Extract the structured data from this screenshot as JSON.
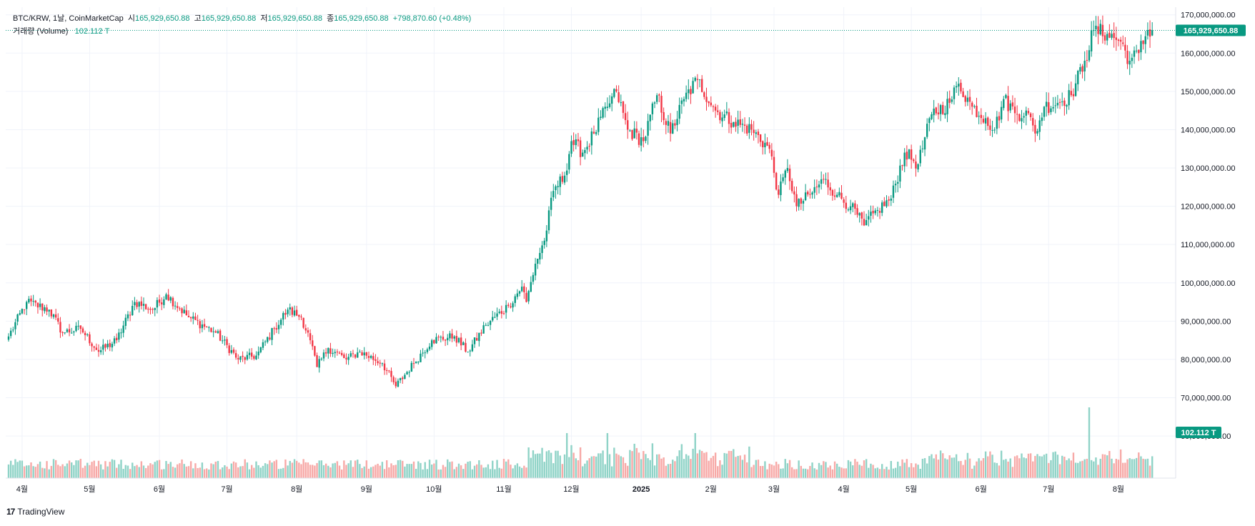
{
  "legend": {
    "symbol": "BTC/KRW, 1날, CoinMarketCap",
    "open_label": "시",
    "open_value": "165,929,650.88",
    "high_label": "고",
    "high_value": "165,929,650.88",
    "low_label": "저",
    "low_value": "165,929,650.88",
    "close_label": "종",
    "close_value": "165,929,650.88",
    "change": "+798,870.60 (+0.48%)",
    "volume_label": "거래량 (Volume)",
    "volume_value": "102.112 T"
  },
  "branding": {
    "logo_text": "TradingView",
    "logo_mark": "17"
  },
  "colors": {
    "up": "#089981",
    "down": "#f23645",
    "up_vol": "#8fd3c7",
    "down_vol": "#f7a9a7",
    "grid": "#f0f3fa"
  },
  "chart_data": {
    "type": "candlestick",
    "title": "BTC/KRW, 1날, CoinMarketCap",
    "ylim": [
      49000000,
      172000000
    ],
    "y_ticks": [
      60000000,
      70000000,
      80000000,
      90000000,
      100000000,
      110000000,
      120000000,
      130000000,
      140000000,
      150000000,
      160000000,
      170000000
    ],
    "y_tick_labels": [
      "60,000,000.00",
      "70,000,000.00",
      "80,000,000.00",
      "90,000,000.00",
      "100,000,000.00",
      "110,000,000.00",
      "120,000,000.00",
      "130,000,000.00",
      "140,000,000.00",
      "150,000,000.00",
      "160,000,000.00",
      "170,000,000.00"
    ],
    "x_labels": [
      "4월",
      "5월",
      "6월",
      "7월",
      "8월",
      "9월",
      "10월",
      "11월",
      "12월",
      "2025",
      "2월",
      "3월",
      "4월",
      "5월",
      "6월",
      "7월",
      "8월"
    ],
    "x_label_days": [
      6,
      36,
      67,
      97,
      128,
      159,
      189,
      220,
      250,
      281,
      312,
      340,
      371,
      401,
      432,
      462,
      493
    ],
    "last_price_label": "165,929,650.88",
    "last_price": 165929650.88,
    "last_volume_label": "102.112 T",
    "volume_max_trillion": 500,
    "volume_price_floor": 49000000,
    "close_anchors": [
      [
        0,
        86000000
      ],
      [
        8,
        95000000
      ],
      [
        18,
        93000000
      ],
      [
        24,
        87000000
      ],
      [
        32,
        88000000
      ],
      [
        40,
        82000000
      ],
      [
        48,
        85000000
      ],
      [
        56,
        95000000
      ],
      [
        64,
        93000000
      ],
      [
        70,
        97000000
      ],
      [
        80,
        91000000
      ],
      [
        92,
        87000000
      ],
      [
        102,
        80000000
      ],
      [
        110,
        81000000
      ],
      [
        118,
        88000000
      ],
      [
        124,
        93000000
      ],
      [
        130,
        91000000
      ],
      [
        134,
        85000000
      ],
      [
        137,
        78000000
      ],
      [
        142,
        83000000
      ],
      [
        150,
        80000000
      ],
      [
        156,
        82000000
      ],
      [
        166,
        79000000
      ],
      [
        172,
        73000000
      ],
      [
        180,
        79000000
      ],
      [
        188,
        85000000
      ],
      [
        198,
        86000000
      ],
      [
        204,
        82000000
      ],
      [
        212,
        89000000
      ],
      [
        222,
        94000000
      ],
      [
        228,
        99000000
      ],
      [
        230,
        95000000
      ],
      [
        234,
        105000000
      ],
      [
        238,
        111000000
      ],
      [
        242,
        124000000
      ],
      [
        247,
        128000000
      ],
      [
        250,
        137000000
      ],
      [
        255,
        134000000
      ],
      [
        260,
        139000000
      ],
      [
        266,
        146000000
      ],
      [
        270,
        150000000
      ],
      [
        275,
        140000000
      ],
      [
        282,
        137000000
      ],
      [
        288,
        149000000
      ],
      [
        294,
        139000000
      ],
      [
        300,
        148000000
      ],
      [
        306,
        153000000
      ],
      [
        314,
        145000000
      ],
      [
        322,
        142000000
      ],
      [
        330,
        140000000
      ],
      [
        338,
        135000000
      ],
      [
        342,
        123000000
      ],
      [
        346,
        130000000
      ],
      [
        350,
        120000000
      ],
      [
        356,
        123000000
      ],
      [
        362,
        127000000
      ],
      [
        368,
        123000000
      ],
      [
        374,
        120000000
      ],
      [
        380,
        115000000
      ],
      [
        386,
        119000000
      ],
      [
        392,
        122000000
      ],
      [
        398,
        134000000
      ],
      [
        404,
        131000000
      ],
      [
        410,
        144000000
      ],
      [
        418,
        147000000
      ],
      [
        422,
        152000000
      ],
      [
        428,
        146000000
      ],
      [
        434,
        143000000
      ],
      [
        438,
        140000000
      ],
      [
        442,
        148000000
      ],
      [
        448,
        144000000
      ],
      [
        452,
        145000000
      ],
      [
        456,
        139000000
      ],
      [
        460,
        146000000
      ],
      [
        466,
        147000000
      ],
      [
        472,
        149000000
      ],
      [
        478,
        158000000
      ],
      [
        482,
        166000000
      ],
      [
        488,
        165000000
      ],
      [
        494,
        163000000
      ],
      [
        498,
        158000000
      ],
      [
        502,
        160000000
      ],
      [
        506,
        166000000
      ],
      [
        508,
        165929650.88
      ]
    ]
  }
}
